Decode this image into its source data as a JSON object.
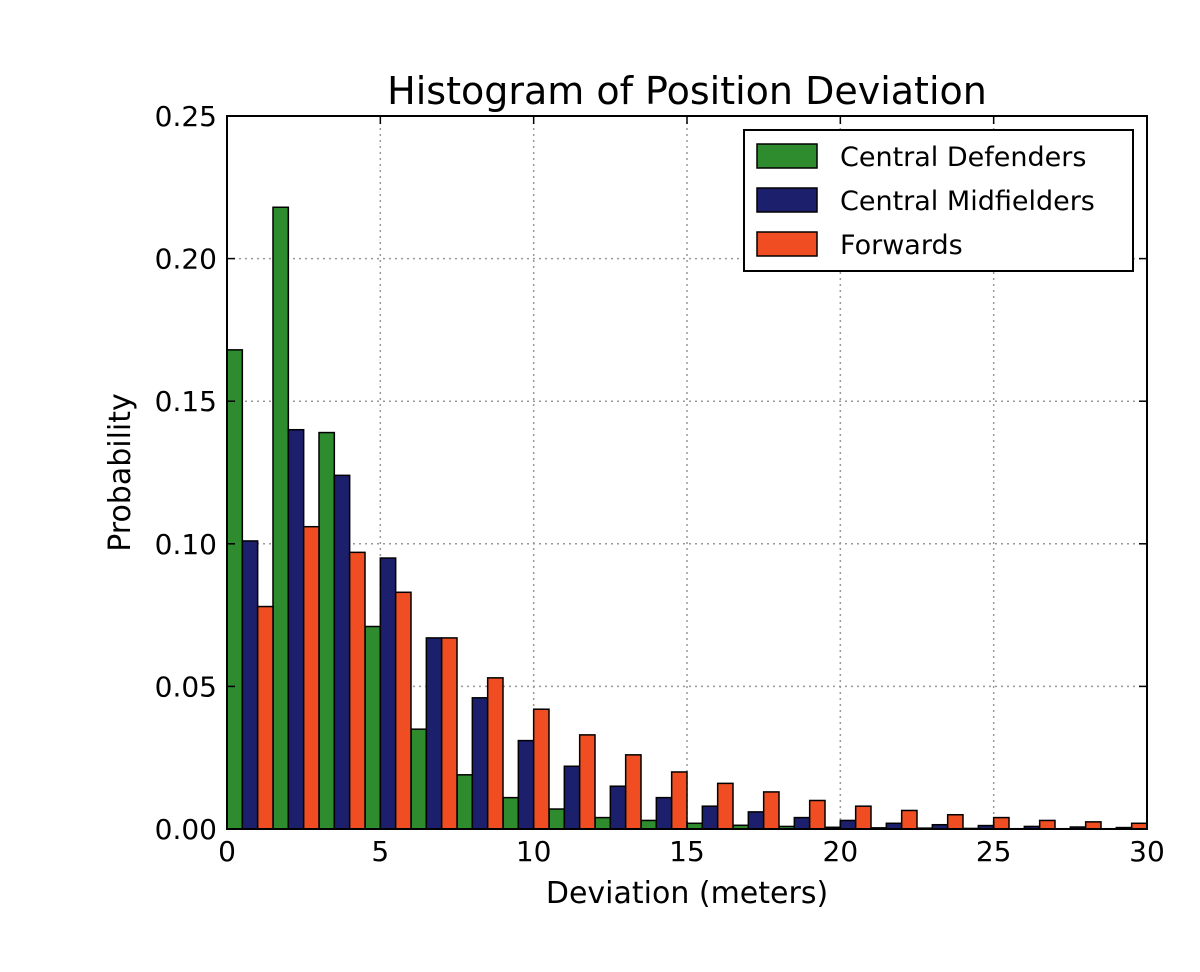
{
  "chart_data": {
    "type": "bar",
    "title": "Histogram of Position Deviation",
    "xlabel": "Deviation (meters)",
    "ylabel": "Probability",
    "xlim": [
      0,
      30
    ],
    "ylim": [
      0,
      0.25
    ],
    "xticks": [
      "0",
      "5",
      "10",
      "15",
      "20",
      "25",
      "30"
    ],
    "yticks": [
      "0.00",
      "0.05",
      "0.10",
      "0.15",
      "0.20",
      "0.25"
    ],
    "grid": true,
    "legend_position": "top-right",
    "bin_width": 1.5,
    "bin_starts": [
      0,
      1.5,
      3,
      4.5,
      6,
      7.5,
      9,
      10.5,
      12,
      13.5,
      15,
      16.5,
      18,
      19.5,
      21,
      22.5,
      24,
      25.5,
      27,
      28.5
    ],
    "series": [
      {
        "name": "Central Defenders",
        "color": "#2e8b2e",
        "values": [
          0.168,
          0.218,
          0.139,
          0.071,
          0.035,
          0.019,
          0.011,
          0.007,
          0.004,
          0.003,
          0.002,
          0.0013,
          0.0009,
          0.0006,
          0.0004,
          0.0003,
          0.0002,
          0.0001,
          0.0001,
          0.0001
        ]
      },
      {
        "name": "Central Midfielders",
        "color": "#1c1f6b",
        "values": [
          0.101,
          0.14,
          0.124,
          0.095,
          0.067,
          0.046,
          0.031,
          0.022,
          0.015,
          0.011,
          0.008,
          0.006,
          0.004,
          0.003,
          0.002,
          0.0015,
          0.0012,
          0.0009,
          0.0007,
          0.0005
        ]
      },
      {
        "name": "Forwards",
        "color": "#f04e22",
        "values": [
          0.078,
          0.106,
          0.097,
          0.083,
          0.067,
          0.053,
          0.042,
          0.033,
          0.026,
          0.02,
          0.016,
          0.013,
          0.01,
          0.008,
          0.0065,
          0.005,
          0.004,
          0.003,
          0.0025,
          0.002
        ]
      }
    ]
  }
}
